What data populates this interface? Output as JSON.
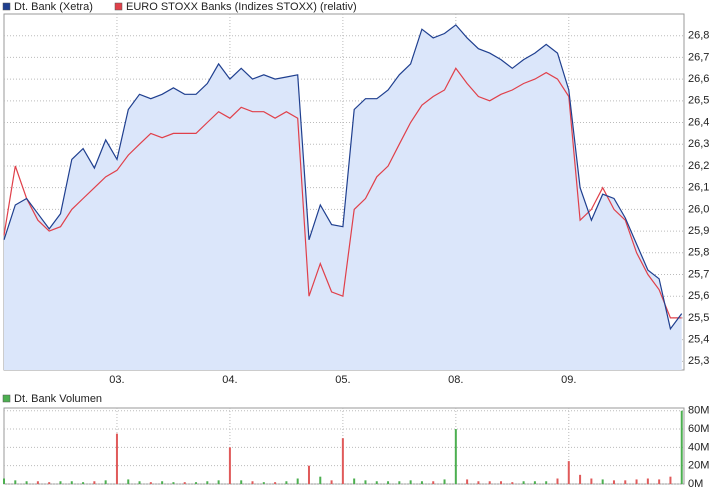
{
  "chart_data": [
    {
      "type": "line",
      "x": [
        0,
        0.1,
        0.2,
        0.3,
        0.4,
        0.5,
        0.6,
        0.7,
        0.8,
        0.9,
        1,
        1.1,
        1.2,
        1.3,
        1.4,
        1.5,
        1.6,
        1.7,
        1.8,
        1.9,
        2,
        2.1,
        2.2,
        2.3,
        2.4,
        2.5,
        2.6,
        2.7,
        2.8,
        2.9,
        3,
        3.1,
        3.2,
        3.3,
        3.4,
        3.5,
        3.6,
        3.7,
        3.8,
        3.9,
        4,
        4.1,
        4.2,
        4.3,
        4.4,
        4.5,
        4.6,
        4.7,
        4.8,
        4.9,
        5,
        5.1,
        5.2,
        5.3,
        5.4,
        5.5,
        5.6,
        5.7,
        5.8,
        5.9,
        6
      ],
      "series": [
        {
          "name": "Dt. Bank (Xetra)",
          "color": "#1f3f8f",
          "values": [
            25.86,
            26.02,
            26.05,
            25.98,
            25.91,
            25.98,
            26.23,
            26.28,
            26.19,
            26.32,
            26.23,
            26.46,
            26.53,
            26.51,
            26.53,
            26.56,
            26.53,
            26.53,
            26.58,
            26.67,
            26.6,
            26.65,
            26.6,
            26.62,
            26.6,
            26.61,
            26.62,
            25.86,
            26.02,
            25.93,
            25.92,
            26.46,
            26.51,
            26.51,
            26.55,
            26.62,
            26.67,
            26.83,
            26.79,
            26.81,
            26.85,
            26.79,
            26.74,
            26.72,
            26.69,
            26.65,
            26.69,
            26.72,
            26.76,
            26.72,
            26.55,
            26.1,
            25.95,
            26.07,
            26.05,
            25.96,
            25.84,
            25.72,
            25.68,
            25.45,
            25.52
          ]
        },
        {
          "name": "EURO STOXX Banks (Indizes STOXX) (relativ)",
          "color": "#e0404a",
          "values": [
            25.88,
            26.2,
            26.05,
            25.95,
            25.9,
            25.92,
            26.0,
            26.05,
            26.1,
            26.15,
            26.18,
            26.25,
            26.3,
            26.35,
            26.33,
            26.35,
            26.35,
            26.35,
            26.4,
            26.45,
            26.42,
            26.47,
            26.45,
            26.45,
            26.42,
            26.45,
            26.42,
            25.6,
            25.75,
            25.62,
            25.6,
            26.0,
            26.05,
            26.15,
            26.2,
            26.3,
            26.4,
            26.48,
            26.52,
            26.55,
            26.65,
            26.58,
            26.52,
            26.5,
            26.53,
            26.55,
            26.58,
            26.6,
            26.63,
            26.6,
            26.52,
            25.95,
            26.0,
            26.1,
            26.0,
            25.95,
            25.8,
            25.7,
            25.63,
            25.5,
            25.5
          ]
        }
      ],
      "area_color": "#dbe6fa",
      "xlim": [
        0,
        6.02
      ],
      "xticks": [
        {
          "value": 1,
          "label": "03."
        },
        {
          "value": 2,
          "label": "04."
        },
        {
          "value": 3,
          "label": "05."
        },
        {
          "value": 4,
          "label": "08."
        },
        {
          "value": 5,
          "label": "09."
        }
      ],
      "ylim": [
        25.26,
        26.9
      ],
      "yticks": [
        {
          "value": 25.3,
          "label": "25,3"
        },
        {
          "value": 25.4,
          "label": "25,4"
        },
        {
          "value": 25.5,
          "label": "25,5"
        },
        {
          "value": 25.6,
          "label": "25,6"
        },
        {
          "value": 25.7,
          "label": "25,7"
        },
        {
          "value": 25.8,
          "label": "25,8"
        },
        {
          "value": 25.9,
          "label": "25,9"
        },
        {
          "value": 26.0,
          "label": "26,0"
        },
        {
          "value": 26.1,
          "label": "26,1"
        },
        {
          "value": 26.2,
          "label": "26,2"
        },
        {
          "value": 26.3,
          "label": "26,3"
        },
        {
          "value": 26.4,
          "label": "26,4"
        },
        {
          "value": 26.5,
          "label": "26,5"
        },
        {
          "value": 26.6,
          "label": "26,6"
        },
        {
          "value": 26.7,
          "label": "26,7"
        },
        {
          "value": 26.8,
          "label": "26,8"
        }
      ],
      "grid": true
    },
    {
      "type": "bar",
      "x": [
        0,
        0.1,
        0.2,
        0.3,
        0.4,
        0.5,
        0.6,
        0.7,
        0.8,
        0.9,
        1,
        1.1,
        1.2,
        1.3,
        1.4,
        1.5,
        1.6,
        1.7,
        1.8,
        1.9,
        2,
        2.1,
        2.2,
        2.3,
        2.4,
        2.5,
        2.6,
        2.7,
        2.8,
        2.9,
        3,
        3.1,
        3.2,
        3.3,
        3.4,
        3.5,
        3.6,
        3.7,
        3.8,
        3.9,
        4,
        4.1,
        4.2,
        4.3,
        4.4,
        4.5,
        4.6,
        4.7,
        4.8,
        4.9,
        5,
        5.1,
        5.2,
        5.3,
        5.4,
        5.5,
        5.6,
        5.7,
        5.8,
        5.9,
        6
      ],
      "series": [
        {
          "name": "Dt. Bank Volumen",
          "color": "#4caf50",
          "values": [
            6,
            4,
            3,
            3,
            2,
            3,
            3,
            2,
            3,
            4,
            55,
            5,
            3,
            2,
            3,
            2,
            2,
            2,
            3,
            4,
            40,
            4,
            3,
            2,
            2,
            3,
            6,
            20,
            8,
            4,
            50,
            6,
            4,
            3,
            3,
            3,
            4,
            3,
            3,
            5,
            60,
            5,
            3,
            3,
            3,
            2,
            3,
            3,
            3,
            6,
            25,
            10,
            6,
            5,
            4,
            4,
            5,
            6,
            5,
            8,
            80
          ]
        }
      ],
      "down_color": "#e05a5a",
      "ylim": [
        0,
        83
      ],
      "yticks": [
        {
          "value": 0,
          "label": "0M"
        },
        {
          "value": 20,
          "label": "20M"
        },
        {
          "value": 40,
          "label": "40M"
        },
        {
          "value": 60,
          "label": "60M"
        },
        {
          "value": 80,
          "label": "80M"
        }
      ],
      "grid": true
    }
  ]
}
